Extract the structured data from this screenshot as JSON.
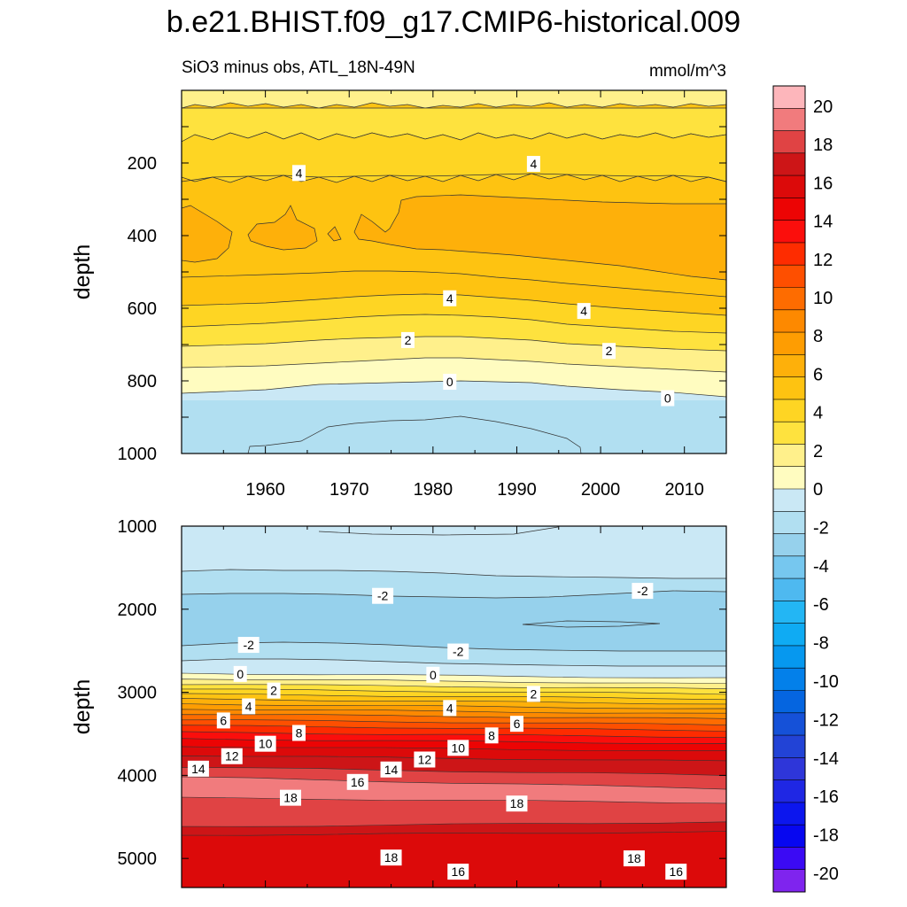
{
  "title": "b.e21.BHIST.f09_g17.CMIP6-historical.009",
  "chart_data": [
    {
      "type": "heatmap",
      "panel": "top",
      "subtitle_left": "SiO3 minus obs, ATL_18N-49N",
      "subtitle_right": "mmol/m^3",
      "ylabel": "depth",
      "xlabel": "",
      "xlim": [
        1950,
        2015
      ],
      "ylim": [
        1000,
        0
      ],
      "xticks": [
        1960,
        1970,
        1980,
        1990,
        2000,
        2010
      ],
      "xtick_labels": [
        "1960",
        "1970",
        "1980",
        "1990",
        "2000",
        "2010"
      ],
      "yticks": [
        200,
        400,
        600,
        800,
        1000
      ],
      "ytick_labels": [
        "200",
        "400",
        "600",
        "800",
        "1000"
      ],
      "contour_labels": [
        {
          "text": "4",
          "year": 1964,
          "depth": 230
        },
        {
          "text": "4",
          "year": 1992,
          "depth": 205
        },
        {
          "text": "4",
          "year": 1982,
          "depth": 575
        },
        {
          "text": "4",
          "year": 1998,
          "depth": 610
        },
        {
          "text": "2",
          "year": 1977,
          "depth": 690
        },
        {
          "text": "2",
          "year": 2001,
          "depth": 720
        },
        {
          "text": "0",
          "year": 1982,
          "depth": 805
        },
        {
          "text": "0",
          "year": 2008,
          "depth": 850
        }
      ]
    },
    {
      "type": "heatmap",
      "panel": "bottom",
      "ylabel": "depth",
      "xlabel": "",
      "xlim": [
        1950,
        2015
      ],
      "ylim": [
        5350,
        1000
      ],
      "yticks": [
        1000,
        2000,
        3000,
        4000,
        5000
      ],
      "ytick_labels": [
        "1000",
        "2000",
        "3000",
        "4000",
        "5000"
      ],
      "contour_labels": [
        {
          "text": "-2",
          "year": 1974,
          "depth": 1850
        },
        {
          "text": "-2",
          "year": 2005,
          "depth": 1790
        },
        {
          "text": "-2",
          "year": 1958,
          "depth": 2440
        },
        {
          "text": "-2",
          "year": 1983,
          "depth": 2520
        },
        {
          "text": "0",
          "year": 1957,
          "depth": 2790
        },
        {
          "text": "0",
          "year": 1980,
          "depth": 2800
        },
        {
          "text": "2",
          "year": 1961,
          "depth": 2990
        },
        {
          "text": "2",
          "year": 1992,
          "depth": 3030
        },
        {
          "text": "4",
          "year": 1958,
          "depth": 3180
        },
        {
          "text": "4",
          "year": 1982,
          "depth": 3200
        },
        {
          "text": "6",
          "year": 1955,
          "depth": 3350
        },
        {
          "text": "6",
          "year": 1990,
          "depth": 3390
        },
        {
          "text": "8",
          "year": 1964,
          "depth": 3500
        },
        {
          "text": "8",
          "year": 1987,
          "depth": 3530
        },
        {
          "text": "10",
          "year": 1960,
          "depth": 3630
        },
        {
          "text": "10",
          "year": 1983,
          "depth": 3680
        },
        {
          "text": "12",
          "year": 1956,
          "depth": 3780
        },
        {
          "text": "12",
          "year": 1979,
          "depth": 3820
        },
        {
          "text": "14",
          "year": 1952,
          "depth": 3930
        },
        {
          "text": "14",
          "year": 1975,
          "depth": 3940
        },
        {
          "text": "16",
          "year": 1971,
          "depth": 4090
        },
        {
          "text": "18",
          "year": 1963,
          "depth": 4280
        },
        {
          "text": "18",
          "year": 1990,
          "depth": 4350
        },
        {
          "text": "18",
          "year": 1975,
          "depth": 5000
        },
        {
          "text": "18",
          "year": 2004,
          "depth": 5010
        },
        {
          "text": "16",
          "year": 1983,
          "depth": 5170
        },
        {
          "text": "16",
          "year": 2009,
          "depth": 5170
        }
      ]
    }
  ],
  "colorbar": {
    "labels": [
      "20",
      "18",
      "16",
      "14",
      "12",
      "10",
      "8",
      "6",
      "4",
      "2",
      "0",
      "-2",
      "-4",
      "-6",
      "-8",
      "-10",
      "-12",
      "-14",
      "-16",
      "-18",
      "-20"
    ],
    "colors": [
      "#fdb6bb",
      "#f17b7d",
      "#e04344",
      "#cd1517",
      "#dc0a0a",
      "#ec0404",
      "#fb0e0c",
      "#fe2c00",
      "#fe4f00",
      "#fe6c00",
      "#fd8900",
      "#fe9d02",
      "#feb00a",
      "#fec311",
      "#fed523",
      "#fee23e",
      "#fff08b",
      "#fffcc0",
      "#cae8f5",
      "#b1dff1",
      "#96d1ec",
      "#76c7ef",
      "#4eb9f0",
      "#23b6f4",
      "#0fabf3",
      "#0698ef",
      "#0380ea",
      "#0565e0",
      "#1551d8",
      "#2243d6",
      "#2e36d9",
      "#1f27e4",
      "#0c16ee",
      "#0707f0",
      "#3b0af4",
      "#7f24ee"
    ]
  }
}
